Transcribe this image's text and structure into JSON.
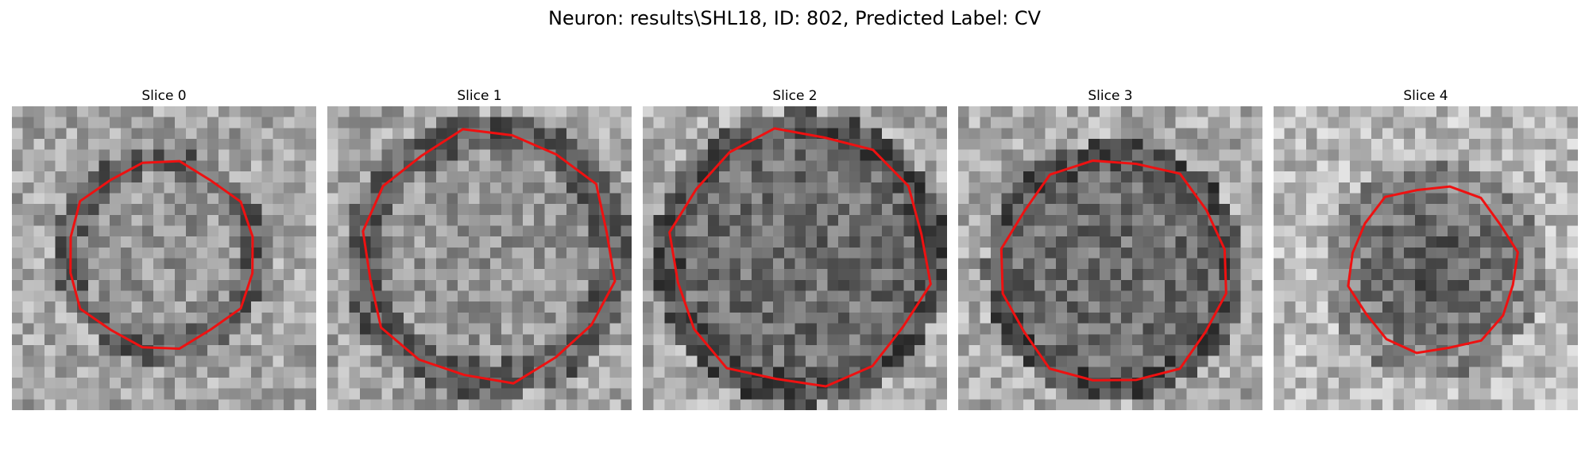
{
  "figure": {
    "title": "Neuron: results\\SHL18, ID: 802, Predicted Label: CV",
    "colormap": "gray",
    "contour_color": "#ee1111"
  },
  "panels": [
    {
      "title": "Slice 0",
      "center": [
        13.7,
        13.7
      ],
      "radius": 8.6,
      "contrast": "ring-dark-inside-light"
    },
    {
      "title": "Slice 1",
      "center": [
        14.8,
        13.8
      ],
      "radius": 11.5,
      "contrast": "ring-dark-inside-light"
    },
    {
      "title": "Slice 2",
      "center": [
        14.5,
        14.0
      ],
      "radius": 11.8,
      "contrast": "dark"
    },
    {
      "title": "Slice 3",
      "center": [
        14.4,
        15.2
      ],
      "radius": 10.4,
      "contrast": "dark"
    },
    {
      "title": "Slice 4",
      "center": [
        14.7,
        15.0
      ],
      "radius": 7.7,
      "contrast": "dark-center"
    }
  ]
}
